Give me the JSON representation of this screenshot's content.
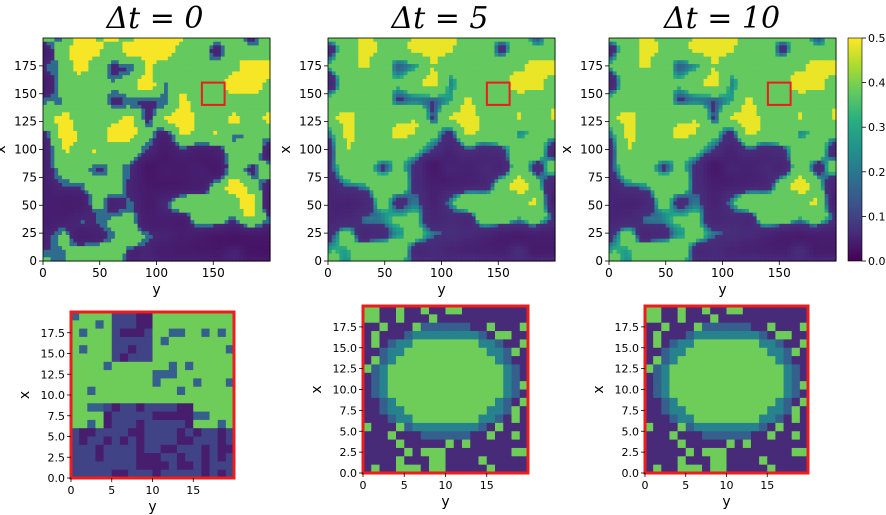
{
  "panel_titles": [
    "Δt = 0",
    "Δt = 5",
    "Δt = 10"
  ],
  "colorbar": {
    "ticks": [
      "0.0",
      "0.1",
      "0.2",
      "0.3",
      "0.4",
      "0.5"
    ],
    "min": 0.0,
    "max": 0.5,
    "colormap": "viridis"
  },
  "colors": {
    "highlight_box": "#ee1c1c",
    "low": "#440154",
    "high": "#fde725"
  },
  "chart_data": [
    {
      "type": "heatmap",
      "title": "Δt = 0",
      "xlabel": "y",
      "ylabel": "x",
      "xlim": [
        0,
        200
      ],
      "ylim": [
        0,
        200
      ],
      "xticks": [
        "0",
        "50",
        "100",
        "150"
      ],
      "yticks": [
        "0",
        "25",
        "50",
        "75",
        "100",
        "125",
        "150",
        "175"
      ],
      "highlight_region": {
        "x_range": [
          140,
          160
        ],
        "y_range": [
          140,
          160
        ]
      }
    },
    {
      "type": "heatmap",
      "title": "Δt = 5",
      "xlabel": "y",
      "ylabel": "x",
      "xlim": [
        0,
        200
      ],
      "ylim": [
        0,
        200
      ],
      "xticks": [
        "0",
        "50",
        "100",
        "150"
      ],
      "yticks": [
        "0",
        "25",
        "50",
        "75",
        "100",
        "125",
        "150",
        "175"
      ],
      "highlight_region": {
        "x_range": [
          140,
          160
        ],
        "y_range": [
          140,
          160
        ]
      }
    },
    {
      "type": "heatmap",
      "title": "Δt = 10",
      "xlabel": "y",
      "ylabel": "x",
      "xlim": [
        0,
        200
      ],
      "ylim": [
        0,
        200
      ],
      "xticks": [
        "0",
        "50",
        "100",
        "150"
      ],
      "yticks": [
        "0",
        "25",
        "50",
        "75",
        "100",
        "125",
        "150",
        "175"
      ],
      "highlight_region": {
        "x_range": [
          140,
          160
        ],
        "y_range": [
          140,
          160
        ]
      }
    },
    {
      "type": "heatmap",
      "xlabel": "y",
      "ylabel": "x",
      "xlim": [
        0,
        20
      ],
      "ylim": [
        0,
        20
      ],
      "xticks": [
        "0",
        "5",
        "10",
        "15"
      ],
      "yticks": [
        "0.0",
        "2.5",
        "5.0",
        "7.5",
        "10.0",
        "12.5",
        "15.0",
        "17.5"
      ]
    },
    {
      "type": "heatmap",
      "xlabel": "y",
      "ylabel": "x",
      "xlim": [
        0,
        20
      ],
      "ylim": [
        0,
        20
      ],
      "xticks": [
        "0",
        "5",
        "10",
        "15"
      ],
      "yticks": [
        "0.0",
        "2.5",
        "5.0",
        "7.5",
        "10.0",
        "12.5",
        "15.0",
        "17.5"
      ]
    },
    {
      "type": "heatmap",
      "xlabel": "y",
      "ylabel": "x",
      "xlim": [
        0,
        20
      ],
      "ylim": [
        0,
        20
      ],
      "xticks": [
        "0",
        "5",
        "10",
        "15"
      ],
      "yticks": [
        "0.0",
        "2.5",
        "5.0",
        "7.5",
        "10.0",
        "12.5",
        "15.0",
        "17.5"
      ]
    }
  ]
}
